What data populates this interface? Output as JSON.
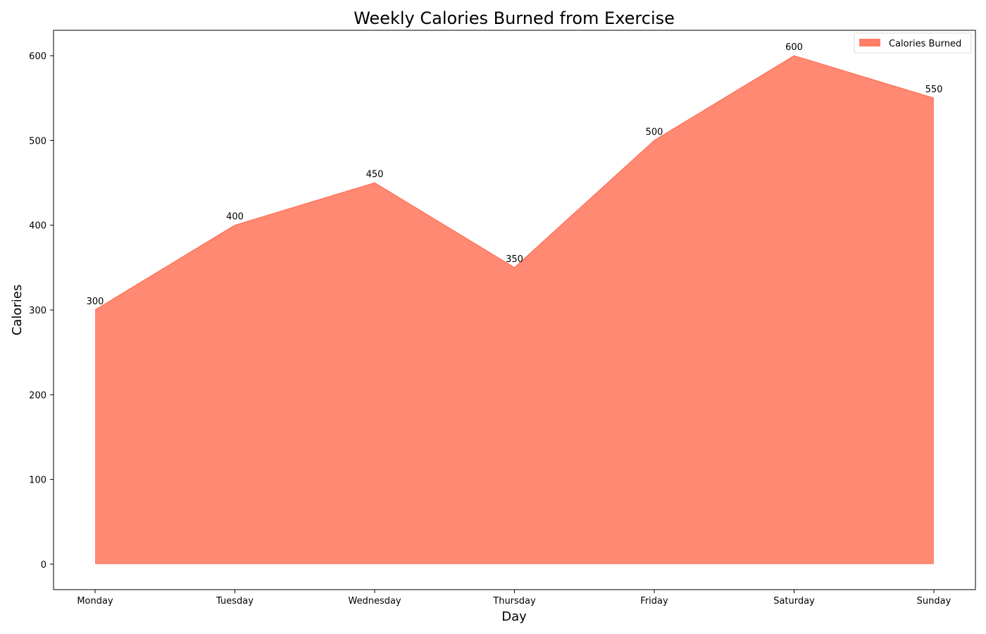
{
  "chart_data": {
    "type": "area",
    "title": "Weekly Calories Burned from Exercise",
    "xlabel": "Day",
    "ylabel": "Calories",
    "categories": [
      "Monday",
      "Tuesday",
      "Wednesday",
      "Thursday",
      "Friday",
      "Saturday",
      "Sunday"
    ],
    "series": [
      {
        "name": "Calories Burned",
        "values": [
          300,
          400,
          450,
          350,
          500,
          600,
          550
        ],
        "color": "#ff7f66"
      }
    ],
    "y_ticks": [
      0,
      100,
      200,
      300,
      400,
      500,
      600
    ],
    "y_tick_labels": [
      "0",
      "100",
      "200",
      "300",
      "400",
      "500",
      "600"
    ],
    "data_labels": [
      "300",
      "400",
      "450",
      "350",
      "500",
      "600",
      "550"
    ],
    "ylim": [
      -30,
      630
    ],
    "grid": false,
    "legend_position": "top-right"
  }
}
